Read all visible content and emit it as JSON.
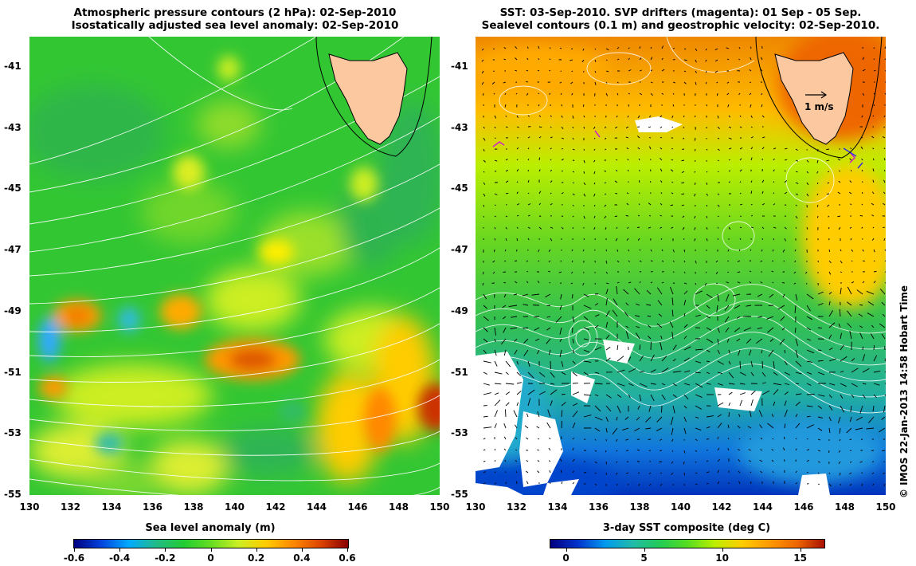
{
  "left_panel": {
    "title_line1": "Atmospheric pressure contours (2 hPa): 02-Sep-2010",
    "title_line2": "Isostatically adjusted sea level anomaly: 02-Sep-2010",
    "x_ticks": [
      "130",
      "132",
      "134",
      "136",
      "138",
      "140",
      "142",
      "144",
      "146",
      "148",
      "150"
    ],
    "y_ticks": [
      "-41",
      "-43",
      "-45",
      "-47",
      "-49",
      "-51",
      "-53",
      "-55"
    ],
    "colorbar": {
      "title": "Sea level anomaly (m)",
      "ticks": [
        "-0.6",
        "-0.4",
        "-0.2",
        "0",
        "0.2",
        "0.4",
        "0.6"
      ],
      "range": [
        -0.6,
        0.6
      ]
    }
  },
  "right_panel": {
    "title_line1": "SST: 03-Sep-2010. SVP drifters (magenta): 01 Sep - 05 Sep.",
    "title_line2": "Sealevel contours (0.1 m) and geostrophic velocity: 02-Sep-2010.",
    "x_ticks": [
      "130",
      "132",
      "134",
      "136",
      "138",
      "140",
      "142",
      "144",
      "146",
      "148",
      "150"
    ],
    "y_ticks": [
      "-41",
      "-43",
      "-45",
      "-47",
      "-49",
      "-51",
      "-53",
      "-55"
    ],
    "velocity_scale_label": "1 m/s",
    "colorbar": {
      "title": "3-day SST composite (deg C)",
      "ticks": [
        "0",
        "5",
        "10",
        "15"
      ],
      "range": [
        -1,
        16.5
      ]
    }
  },
  "credit": "© IMOS 22-Jan-2013 14:58 Hobart Time",
  "colors": {
    "land": "#fcc8a0",
    "coast": "#000000",
    "contour": "#ffffff",
    "sla_ramp": [
      "#00007f",
      "#0044dd",
      "#00aaff",
      "#22bb88",
      "#22cc33",
      "#66dd22",
      "#ccee22",
      "#ffcc00",
      "#ff8800",
      "#dd4400",
      "#880000"
    ],
    "sst_ramp": [
      "#00007f",
      "#0033cc",
      "#0099ee",
      "#22bbaa",
      "#22cc55",
      "#55dd22",
      "#bbee00",
      "#ffcc00",
      "#ff9900",
      "#ee6600",
      "#aa1100"
    ]
  }
}
